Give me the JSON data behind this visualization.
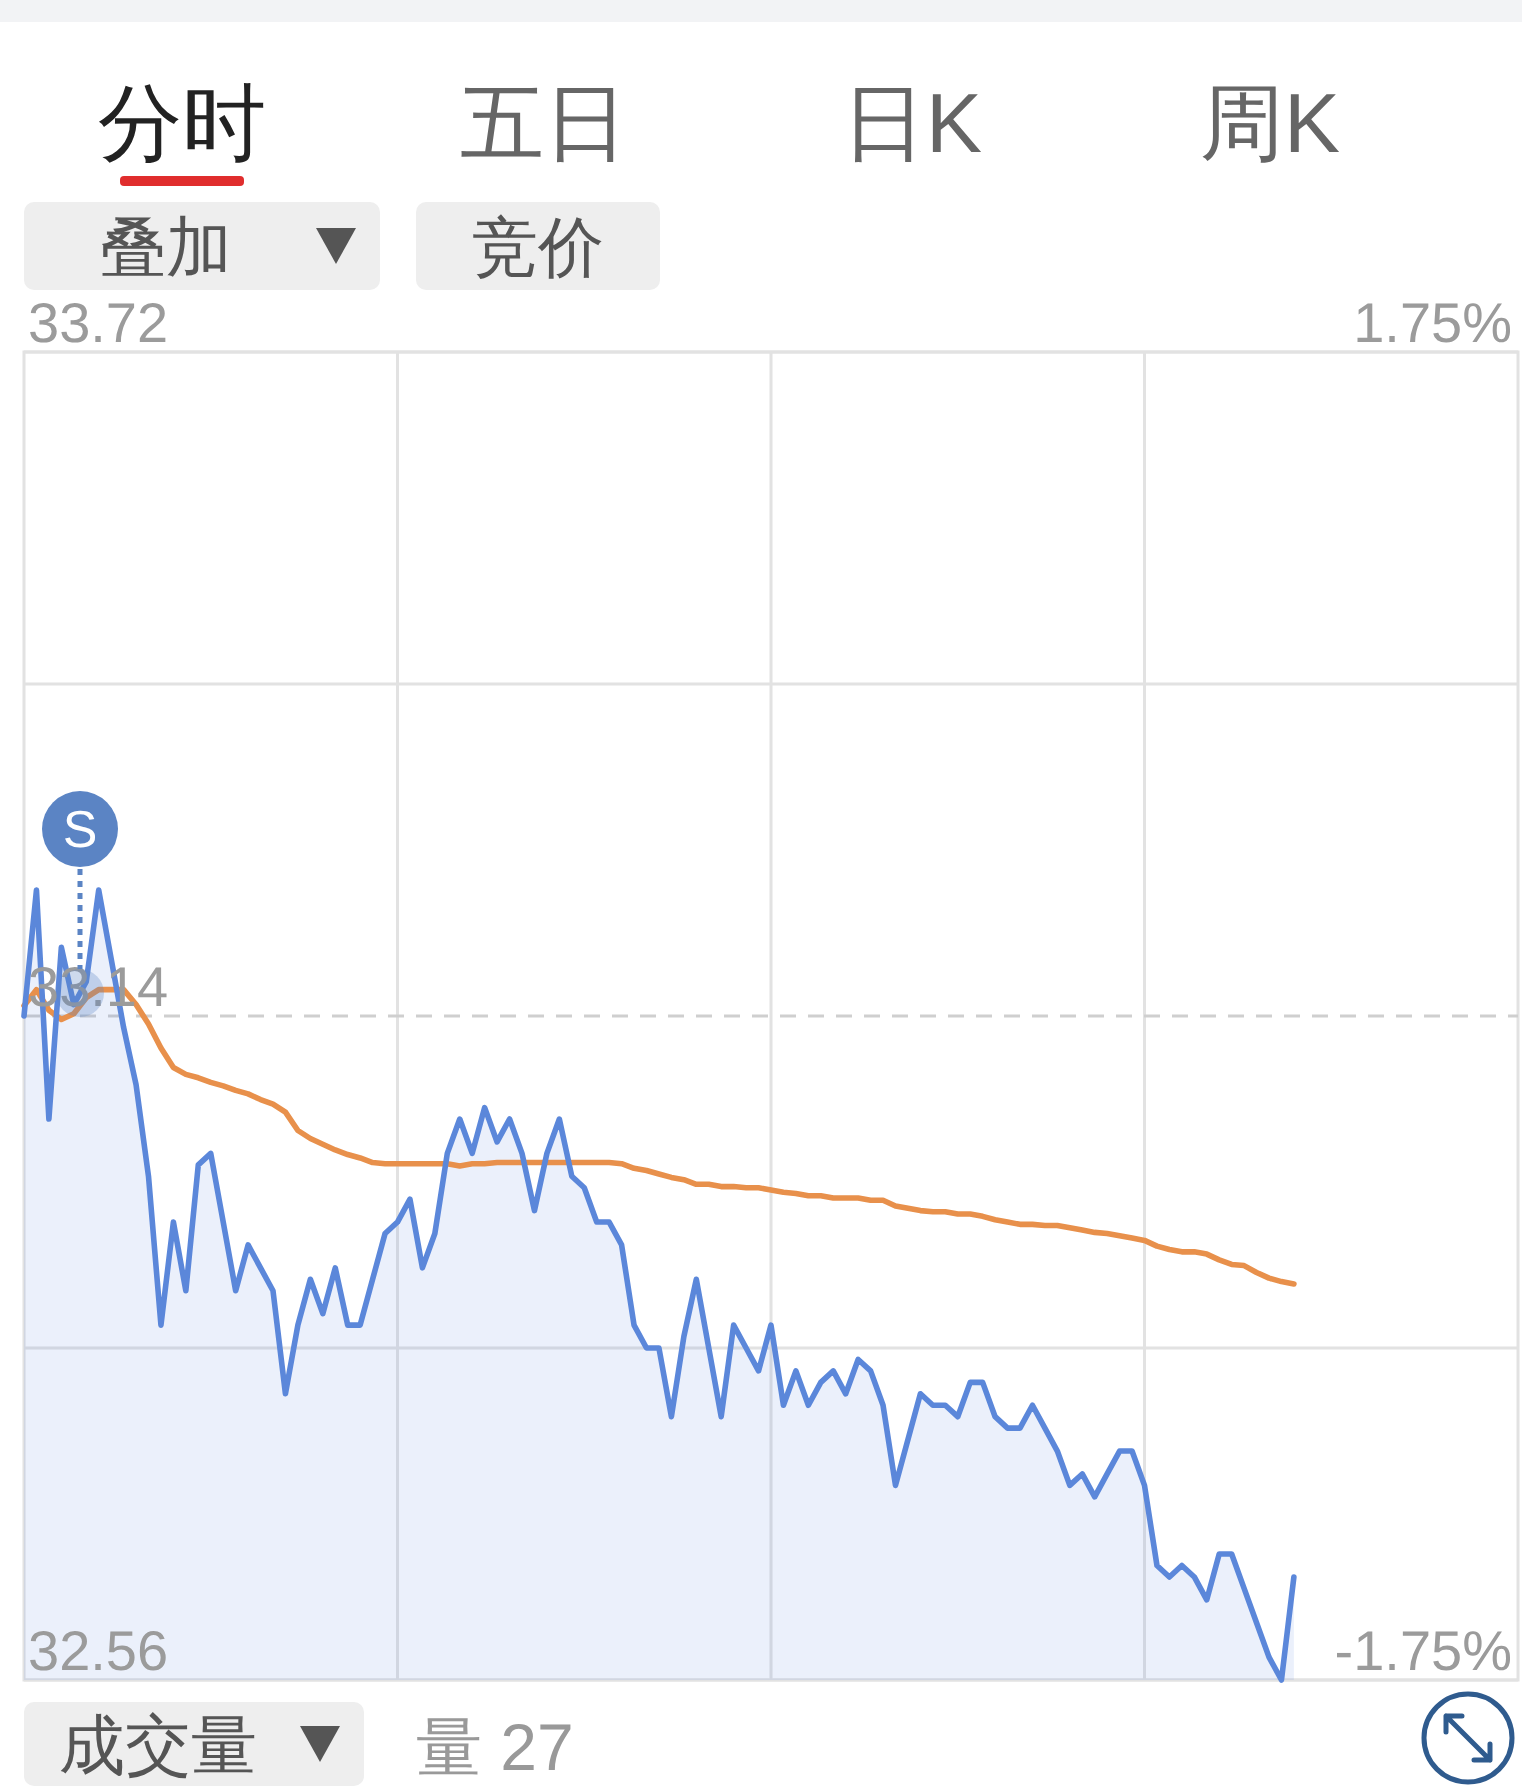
{
  "chart_data": {
    "type": "line",
    "categories": [
      null,
      null,
      null,
      null,
      null,
      null,
      null,
      null,
      null,
      null,
      null,
      null,
      null,
      null,
      null,
      null,
      null,
      null,
      null,
      null,
      null,
      null,
      null,
      null,
      null,
      null,
      null,
      null,
      null,
      null,
      null,
      null,
      null,
      null,
      null,
      null,
      null,
      null,
      null,
      null,
      null,
      null,
      null,
      null,
      null,
      null,
      null,
      null,
      null,
      null,
      null,
      null,
      null,
      null,
      null,
      null,
      null,
      null,
      null,
      null,
      null,
      null,
      null,
      null,
      null,
      null,
      null,
      null,
      null,
      null,
      null,
      null,
      null,
      null,
      null,
      null,
      null,
      null,
      null,
      null,
      null,
      null,
      null,
      null,
      null,
      null,
      null,
      null,
      null,
      null,
      null,
      null,
      null,
      null,
      null,
      null,
      null,
      null,
      null,
      null,
      null,
      null,
      null,
      null,
      null,
      null,
      null,
      null,
      null,
      null,
      null,
      null,
      null,
      null,
      null,
      null,
      null,
      null,
      null,
      null,
      null
    ],
    "series": [
      {
        "type": "area",
        "color": "#5b87da",
        "values": [
          33.14,
          33.25,
          33.05,
          33.2,
          33.15,
          33.17,
          33.25,
          33.19,
          33.13,
          33.08,
          33.0,
          32.87,
          32.96,
          32.9,
          33.01,
          33.02,
          32.96,
          32.9,
          32.94,
          32.92,
          32.9,
          32.81,
          32.87,
          32.91,
          32.88,
          32.92,
          32.87,
          32.87,
          32.91,
          32.95,
          32.96,
          32.98,
          32.92,
          32.95,
          33.02,
          33.05,
          33.02,
          33.06,
          33.03,
          33.05,
          33.02,
          32.97,
          33.02,
          33.05,
          33.0,
          32.99,
          32.96,
          32.96,
          32.94,
          32.87,
          32.85,
          32.85,
          32.79,
          32.86,
          32.91,
          32.85,
          32.79,
          32.87,
          32.85,
          32.83,
          32.87,
          32.8,
          32.83,
          32.8,
          32.82,
          32.83,
          32.81,
          32.84,
          32.83,
          32.8,
          32.73,
          32.77,
          32.81,
          32.8,
          32.8,
          32.79,
          32.82,
          32.82,
          32.79,
          32.78,
          32.78,
          32.8,
          32.78,
          32.76,
          32.73,
          32.74,
          32.72,
          32.74,
          32.76,
          32.76,
          32.73,
          32.66,
          32.65,
          32.66,
          32.65,
          32.63,
          32.67,
          32.67,
          32.64,
          32.61,
          32.58,
          32.56,
          32.65,
          null,
          null,
          null,
          null,
          null,
          null,
          null,
          null,
          null,
          null,
          null,
          null,
          null,
          null,
          null,
          null,
          null,
          null
        ]
      },
      {
        "color": "#e8904b",
        "values": [
          33.149,
          33.163,
          33.145,
          33.137,
          33.142,
          33.156,
          33.163,
          33.163,
          33.163,
          33.15,
          33.133,
          33.112,
          33.095,
          33.089,
          33.086,
          33.082,
          33.079,
          33.075,
          33.072,
          33.067,
          33.063,
          33.056,
          33.04,
          33.033,
          33.028,
          33.023,
          33.019,
          33.016,
          33.012,
          33.011,
          33.011,
          33.011,
          33.011,
          33.011,
          33.011,
          33.009,
          33.011,
          33.011,
          33.012,
          33.012,
          33.012,
          33.012,
          33.012,
          33.012,
          33.012,
          33.012,
          33.012,
          33.012,
          33.011,
          33.007,
          33.005,
          33.002,
          32.999,
          32.997,
          32.993,
          32.993,
          32.991,
          32.991,
          32.99,
          32.99,
          32.988,
          32.986,
          32.985,
          32.983,
          32.983,
          32.981,
          32.981,
          32.981,
          32.979,
          32.979,
          32.974,
          32.972,
          32.97,
          32.969,
          32.969,
          32.967,
          32.967,
          32.965,
          32.962,
          32.96,
          32.958,
          32.958,
          32.957,
          32.957,
          32.955,
          32.953,
          32.951,
          32.95,
          32.948,
          32.946,
          32.944,
          32.939,
          32.936,
          32.934,
          32.934,
          32.932,
          32.927,
          32.923,
          32.922,
          32.916,
          32.911,
          32.908,
          32.906,
          null,
          null,
          null,
          null,
          null,
          null,
          null,
          null,
          null,
          null,
          null,
          null,
          null,
          null,
          null,
          null,
          null,
          null
        ]
      }
    ],
    "ylim": [
      32.56,
      33.72
    ],
    "yticks": [
      32.56,
      {
        "value": 32.85,
        "label": null
      },
      33.14,
      {
        "value": 33.43,
        "label": null
      },
      33.72
    ],
    "y2lim": [
      -1.75,
      1.75
    ],
    "y2ticks": [
      {
        "value": -1.75,
        "label": "-1.75%"
      },
      {
        "value": 1.75,
        "label": "1.75%"
      }
    ],
    "ref_lines": [
      {
        "axis": "y",
        "value": 33.14,
        "line_style": "dashed"
      }
    ],
    "grid": true,
    "annotations": [
      "分时",
      "五日",
      "日K",
      "周K",
      "叠加",
      "竞价",
      {
        "text": "S",
        "y": 33.16
      },
      "成交量",
      "量 27"
    ]
  }
}
